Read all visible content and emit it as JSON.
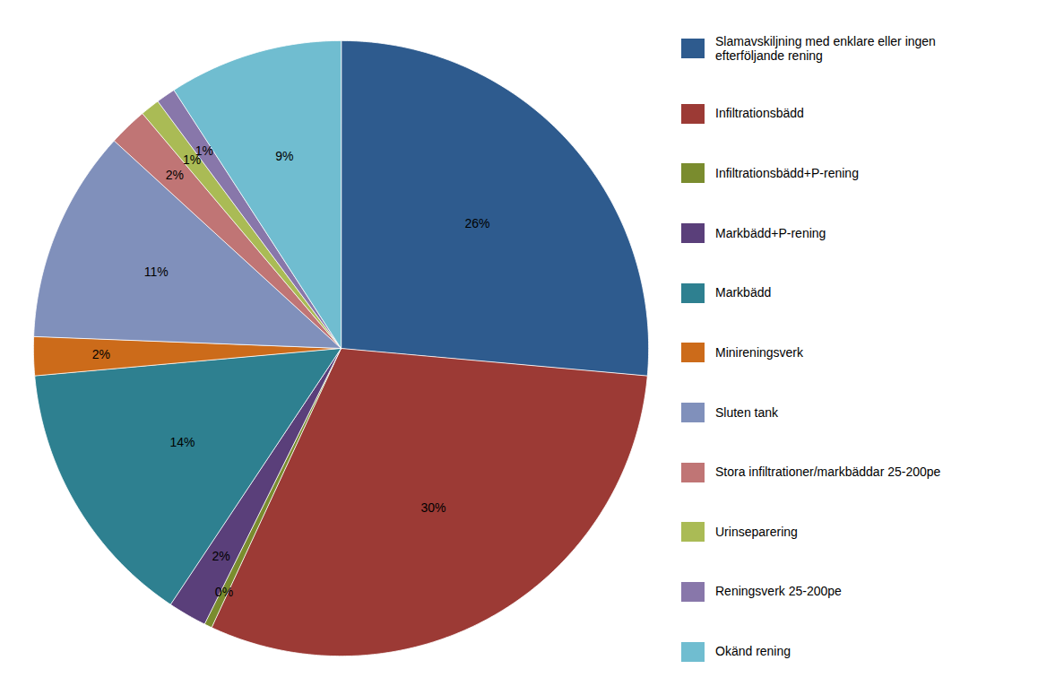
{
  "chart_data": {
    "type": "pie",
    "categories": [
      "Slamavskiljning med enklare eller ingen\nefterföljande rening",
      "Infiltrationsbädd",
      "Infiltrationsbädd+P-rening",
      "Markbädd+P-rening",
      "Markbädd",
      "Minireningsverk",
      "Sluten tank",
      "Stora infiltrationer/markbäddar 25-200pe",
      "Urinseparering",
      "Reningsverk 25-200pe",
      "Okänd rening"
    ],
    "values": [
      26,
      30,
      0.4,
      2,
      14,
      2,
      11,
      2,
      1,
      1,
      9
    ],
    "value_labels": [
      "26%",
      "30%",
      "0%",
      "2%",
      "14%",
      "2%",
      "11%",
      "2%",
      "1%",
      "1%",
      "9%"
    ],
    "colors": [
      "#2E5B8E",
      "#9C3A35",
      "#7A8C2E",
      "#5A3F7A",
      "#2E8090",
      "#CC6B1A",
      "#8090BB",
      "#C07575",
      "#AABB55",
      "#8877AA",
      "#70BDD0"
    ],
    "data_labels": true,
    "legend": "right"
  }
}
